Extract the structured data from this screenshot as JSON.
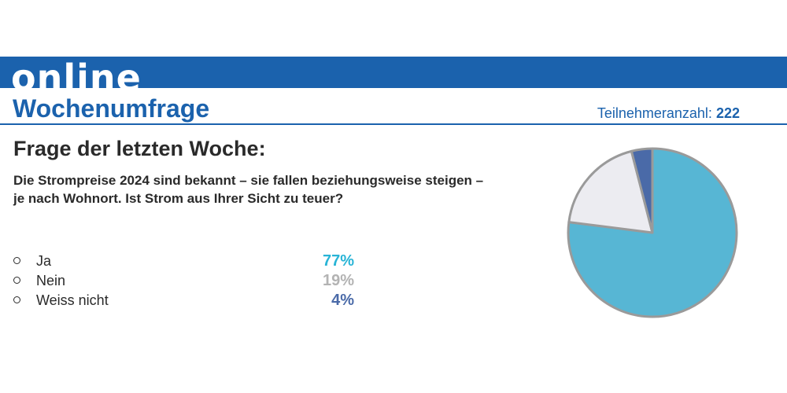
{
  "banner": {
    "word": "online"
  },
  "header": {
    "title": "Wochenumfrage",
    "participants_label": "Teilnehmeranzahl:",
    "participants_count": "222"
  },
  "question": {
    "heading": "Frage der letzten Woche:",
    "text": "Die Strompreise 2024 sind bekannt – sie fallen beziehungsweise steigen – je nach Wohnort. Ist Strom aus Ihrer Sicht zu teuer?"
  },
  "answers": [
    {
      "label": "Ja",
      "percent": "77%",
      "color": "#28b4d6"
    },
    {
      "label": "Nein",
      "percent": "19%",
      "color": "#b3b3b3"
    },
    {
      "label": "Weiss nicht",
      "percent": "4%",
      "color": "#4a6aa8"
    }
  ],
  "chart_data": {
    "type": "pie",
    "categories": [
      "Ja",
      "Nein",
      "Weiss nicht"
    ],
    "values": [
      77,
      19,
      4
    ],
    "colors": [
      "#57b6d4",
      "#ececf1",
      "#4a6aa8"
    ],
    "outline_color": "#9a9a9a"
  }
}
